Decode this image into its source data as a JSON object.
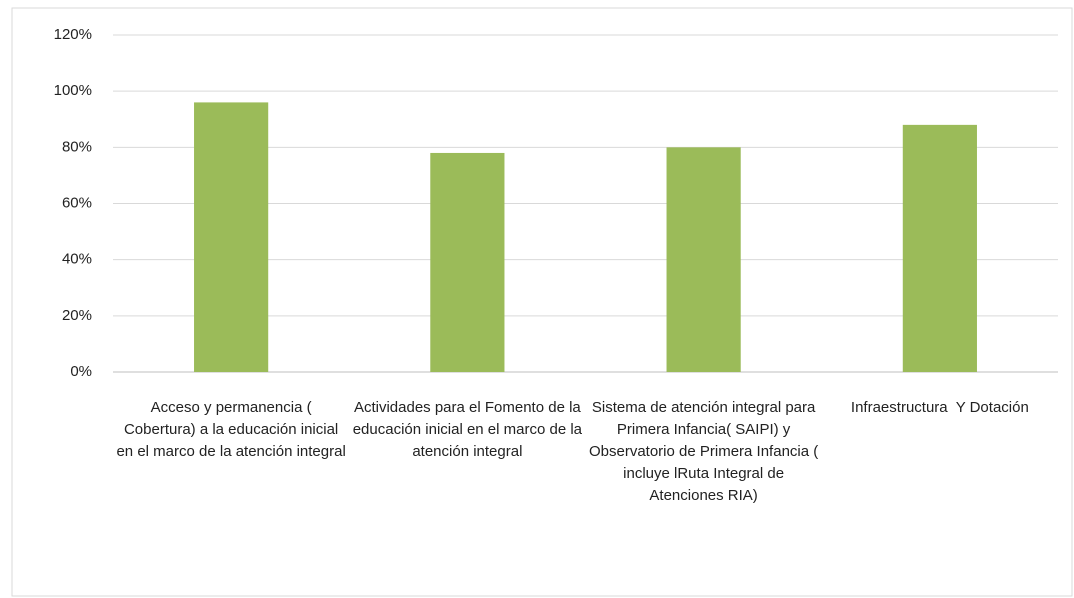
{
  "chart_data": {
    "type": "bar",
    "categories": [
      "Acceso y permanencia ( Cobertura) a la educación inicial en el marco de la atención integral",
      "Actividades para el Fomento de la educación inicial en el marco de la atención integral",
      "Sistema de atención integral para Primera Infancia( SAIPI) y Observatorio de Primera Infancia ( incluye lRuta Integral de Atenciones RIA)",
      "Infraestructura  Y Dotación"
    ],
    "values": [
      96,
      78,
      80,
      88
    ],
    "color": "#9bbb59",
    "ylim": [
      0,
      120
    ],
    "yticks": [
      {
        "value": 0,
        "label": "0%"
      },
      {
        "value": 20,
        "label": "20%"
      },
      {
        "value": 40,
        "label": "40%"
      },
      {
        "value": 60,
        "label": "60%"
      },
      {
        "value": 80,
        "label": "80%"
      },
      {
        "value": 100,
        "label": "100%"
      },
      {
        "value": 120,
        "label": "120%"
      }
    ],
    "grid": true
  }
}
